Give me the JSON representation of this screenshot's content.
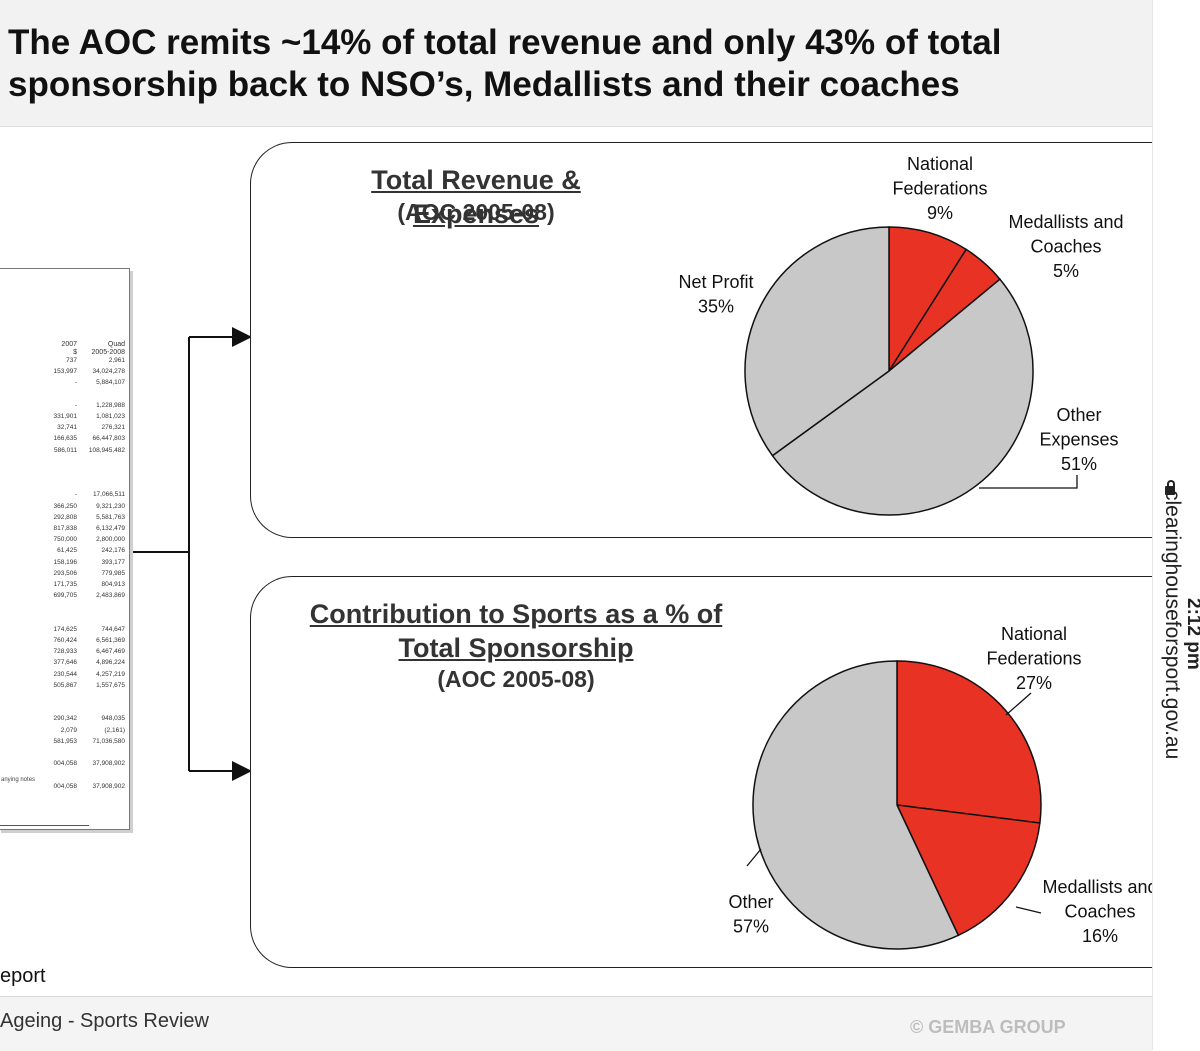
{
  "title": "The AOC remits ~14% of total revenue and only 43% of total sponsorship back to NSO’s, Medallists and their coaches",
  "colors": {
    "red": "#e83324",
    "grey": "#c8c8c8",
    "dark": "#111111"
  },
  "document_excerpt": {
    "header": {
      "year": "2007",
      "year_unit": "$",
      "quad": "Quad",
      "quad_period": "2005-2008"
    },
    "rows": [
      [
        "737",
        "2,961"
      ],
      [
        "153,997",
        "34,024,278"
      ],
      [
        "-",
        "5,884,107"
      ],
      [
        "",
        ""
      ],
      [
        "-",
        "1,228,988"
      ],
      [
        "331,901",
        "1,081,023"
      ],
      [
        "32,741",
        "276,321"
      ],
      [
        "166,635",
        "66,447,803"
      ],
      [
        "586,011",
        "108,945,482"
      ],
      [
        "",
        ""
      ],
      [
        "",
        ""
      ],
      [
        "",
        ""
      ],
      [
        "-",
        "17,066,511"
      ],
      [
        "366,250",
        "9,321,230"
      ],
      [
        "292,808",
        "5,581,763"
      ],
      [
        "817,838",
        "6,132,479"
      ],
      [
        "750,000",
        "2,800,000"
      ],
      [
        "61,425",
        "242,176"
      ],
      [
        "158,196",
        "393,177"
      ],
      [
        "293,506",
        "779,985"
      ],
      [
        "171,735",
        "804,913"
      ],
      [
        "699,705",
        "2,483,869"
      ],
      [
        "",
        ""
      ],
      [
        "",
        ""
      ],
      [
        "174,625",
        "744,647"
      ],
      [
        "760,424",
        "6,561,369"
      ],
      [
        "728,933",
        "6,467,469"
      ],
      [
        "377,646",
        "4,896,224"
      ],
      [
        "230,544",
        "4,257,219"
      ],
      [
        "505,867",
        "1,557,675"
      ],
      [
        "",
        ""
      ],
      [
        "",
        ""
      ],
      [
        "290,342",
        "948,035"
      ],
      [
        "2,079",
        "(2,161)"
      ],
      [
        "581,953",
        "71,036,580"
      ],
      [
        "",
        ""
      ],
      [
        "004,058",
        "37,908,902"
      ],
      [
        "",
        ""
      ],
      [
        "004,058",
        "37,908,902"
      ]
    ],
    "note": "anying notes"
  },
  "chart_data": [
    {
      "type": "pie",
      "title": "Total Revenue & Expenses",
      "subtitle": "(AOC 2005-08)",
      "slices": [
        {
          "label_lines": [
            "National",
            "Federations"
          ],
          "value": 9,
          "value_label": "9%",
          "color": "#e83324"
        },
        {
          "label_lines": [
            "Medallists and",
            "Coaches"
          ],
          "value": 5,
          "value_label": "5%",
          "color": "#e83324"
        },
        {
          "label_lines": [
            "Other",
            "Expenses"
          ],
          "value": 51,
          "value_label": "51%",
          "color": "#c8c8c8"
        },
        {
          "label_lines": [
            "Net Profit"
          ],
          "value": 35,
          "value_label": "35%",
          "color": "#c8c8c8"
        }
      ]
    },
    {
      "type": "pie",
      "title": "Contribution to Sports as a % of Total Sponsorship",
      "title_lines": [
        "Contribution to Sports as a % of",
        "Total Sponsorship"
      ],
      "subtitle": "(AOC 2005-08)",
      "slices": [
        {
          "label_lines": [
            "National",
            "Federations"
          ],
          "value": 27,
          "value_label": "27%",
          "color": "#e83324"
        },
        {
          "label_lines": [
            "Medallists and",
            "Coaches"
          ],
          "value": 16,
          "value_label": "16%",
          "color": "#e83324"
        },
        {
          "label_lines": [
            "Other"
          ],
          "value": 57,
          "value_label": "57%",
          "color": "#c8c8c8"
        }
      ]
    }
  ],
  "source": "eport",
  "footer": "Ageing - Sports Review",
  "copyright": "© GEMBA GROUP",
  "browser": {
    "url": "clearinghouseforsport.gov.au",
    "time": "2:12 pm"
  }
}
